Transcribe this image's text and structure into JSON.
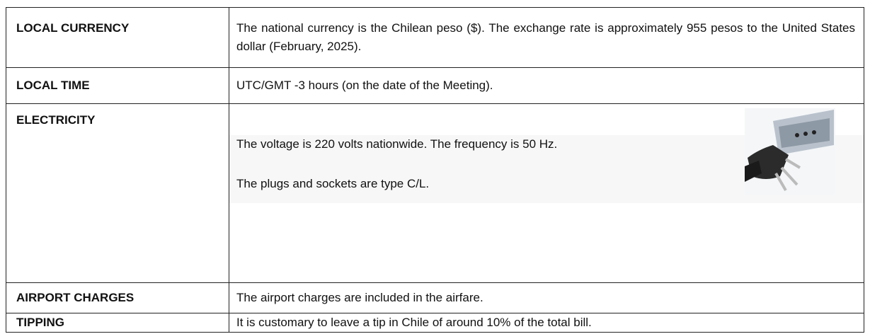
{
  "table": {
    "rows": [
      {
        "label": "LOCAL CURRENCY",
        "text": [
          "The national currency is the Chilean peso ($). The exchange rate is approximately 955 pesos to the United States dollar (February, 2025)."
        ]
      },
      {
        "label": "LOCAL TIME",
        "text": [
          "UTC/GMT -3 hours (on the date of the Meeting)."
        ]
      },
      {
        "label": "ELECTRICITY",
        "text": [
          "The voltage is 220 volts nationwide.  The frequency is 50 Hz.",
          "The plugs and sockets are type C/L."
        ]
      },
      {
        "label": "AIRPORT CHARGES",
        "text": [
          "The airport charges are included in the airfare."
        ]
      },
      {
        "label": "TIPPING",
        "text": [
          "It is customary to leave a tip in Chile of around 10% of the total bill."
        ]
      }
    ]
  }
}
